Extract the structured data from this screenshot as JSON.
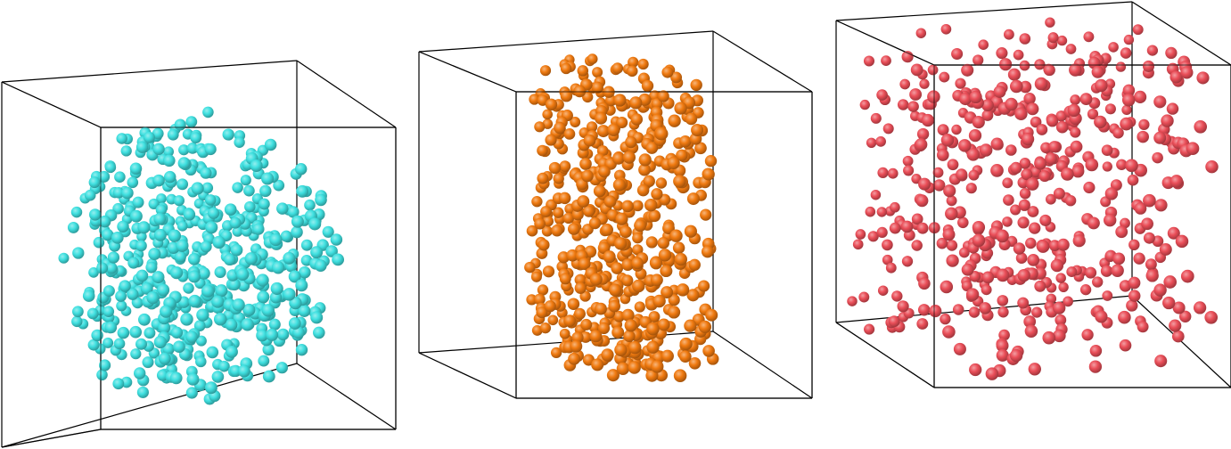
{
  "panels": [
    {
      "id": "panel-1",
      "color": "#3fe0e0",
      "shape": "sphere",
      "count": 520,
      "seed": 11
    },
    {
      "id": "panel-2",
      "color": "#f07a10",
      "shape": "cylinder",
      "count": 520,
      "seed": 29
    },
    {
      "id": "panel-3",
      "color": "#ea4e58",
      "shape": "uniform",
      "count": 470,
      "seed": 47
    }
  ],
  "colors": {
    "background": "#ffffff",
    "frame": "#000000"
  }
}
